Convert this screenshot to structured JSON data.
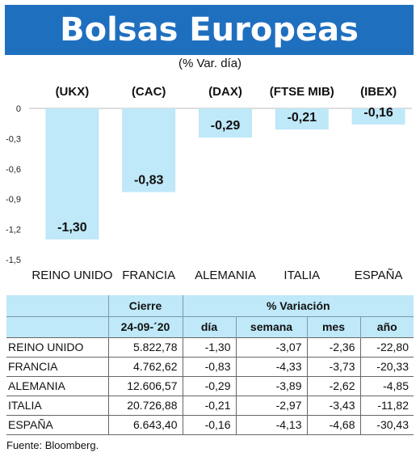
{
  "header": {
    "title": "Bolsas Europeas",
    "subtitle": "(% Var. día)"
  },
  "chart_data": {
    "type": "bar",
    "categories": [
      "REINO UNIDO",
      "FRANCIA",
      "ALEMANIA",
      "ITALIA",
      "ESPAÑA"
    ],
    "index_labels": [
      "(UKX)",
      "(CAC)",
      "(DAX)",
      "(FTSE MIB)",
      "(IBEX)"
    ],
    "values": [
      -1.3,
      -0.83,
      -0.29,
      -0.21,
      -0.16
    ],
    "value_labels": [
      "-1,30",
      "-0,83",
      "-0,29",
      "-0,21",
      "-0,16"
    ],
    "y_ticks": [
      "0",
      "-0,3",
      "-0,6",
      "-0,9",
      "-1,2",
      "-1,5"
    ],
    "ylim": [
      -1.5,
      0
    ],
    "bar_color": "#bfe8f8",
    "grid": false
  },
  "table": {
    "header_top": [
      "Cierre",
      "% Variación"
    ],
    "header_sub": [
      "24-09-´20",
      "día",
      "semana",
      "mes",
      "año"
    ],
    "rows": [
      [
        "REINO UNIDO",
        "5.822,78",
        "-1,30",
        "-3,07",
        "-2,36",
        "-22,80"
      ],
      [
        "FRANCIA",
        "4.762,62",
        "-0,83",
        "-4,33",
        "-3,73",
        "-20,33"
      ],
      [
        "ALEMANIA",
        "12.606,57",
        "-0,29",
        "-3,89",
        "-2,62",
        "-4,85"
      ],
      [
        "ITALIA",
        "20.726,88",
        "-0,21",
        "-2,97",
        "-3,43",
        "-11,82"
      ],
      [
        "ESPAÑA",
        "6.643,40",
        "-0,16",
        "-4,13",
        "-4,68",
        "-30,43"
      ]
    ],
    "header_color": "#bfe8f8"
  },
  "footer": {
    "source": "Fuente: Bloomberg."
  },
  "colors": {
    "title_bg": "#1f6fbf",
    "title_text": "#ffffff"
  }
}
